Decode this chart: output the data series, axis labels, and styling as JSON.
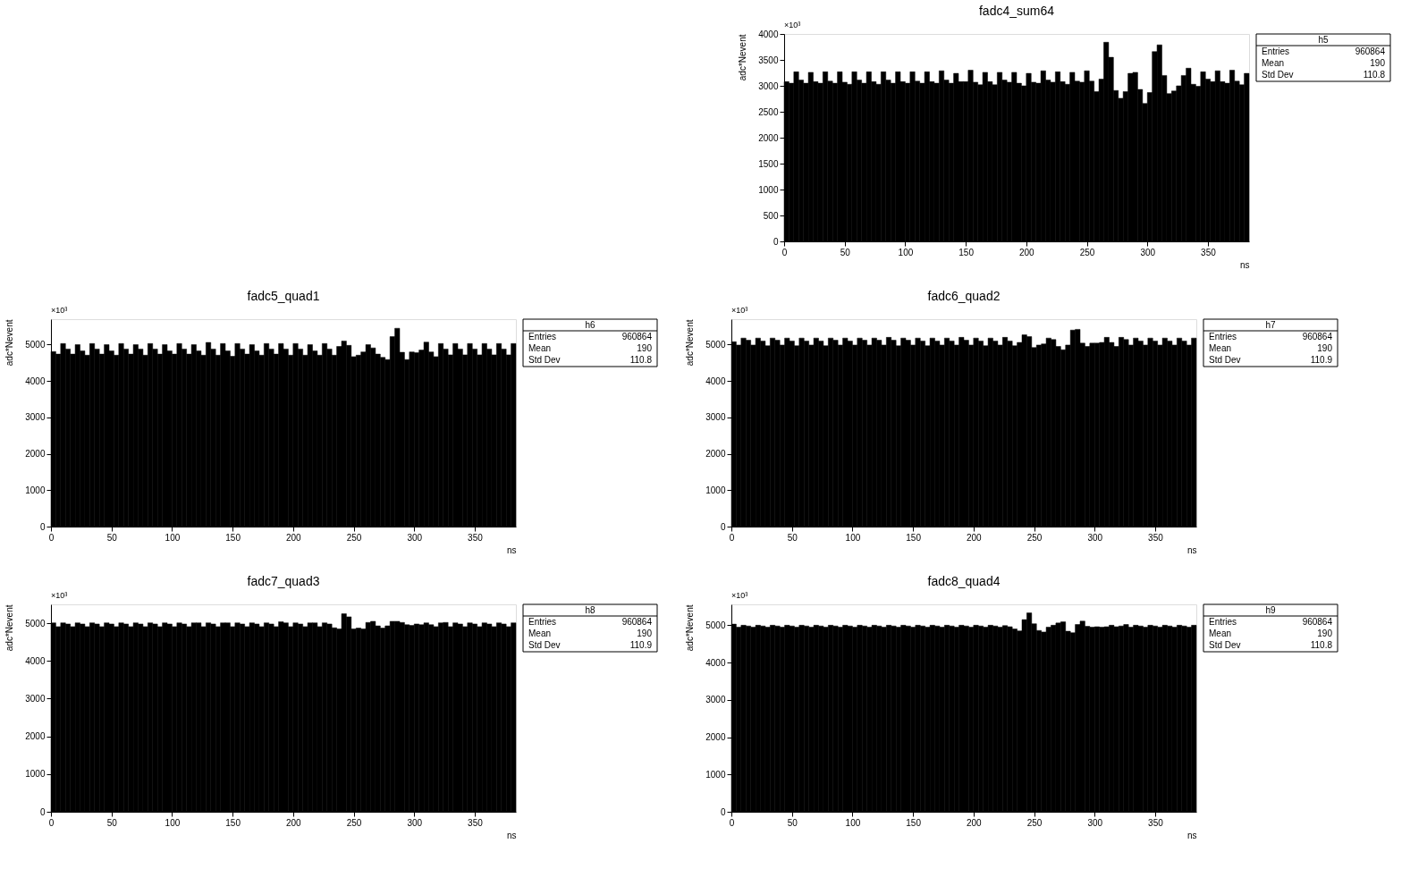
{
  "chart_data": [
    {
      "type": "histogram",
      "title": "fadc4_sum64",
      "xlabel": "ns",
      "ylabel": "adc*Nevent",
      "color": "#000000",
      "xlim": [
        0,
        384
      ],
      "xticks": [
        0,
        50,
        100,
        150,
        200,
        250,
        300,
        350
      ],
      "ylim": [
        0,
        4000
      ],
      "yticks": [
        0,
        500,
        1000,
        1500,
        2000,
        2500,
        3000,
        3500,
        4000
      ],
      "annotations": [
        "×10³",
        "h5",
        "Entries",
        "960864",
        "Mean",
        "190",
        "Std Dev",
        "110.8"
      ],
      "bins": [
        0,
        4,
        8,
        12,
        16,
        20,
        24,
        28,
        32,
        36,
        40,
        44,
        48,
        52,
        56,
        60,
        64,
        68,
        72,
        76,
        80,
        84,
        88,
        92,
        96,
        100,
        104,
        108,
        112,
        116,
        120,
        124,
        128,
        132,
        136,
        140,
        144,
        148,
        152,
        156,
        160,
        164,
        168,
        172,
        176,
        180,
        184,
        188,
        192,
        196,
        200,
        204,
        208,
        212,
        216,
        220,
        224,
        228,
        232,
        236,
        240,
        244,
        248,
        252,
        256,
        260,
        264,
        268,
        272,
        276,
        280,
        284,
        288,
        292,
        296,
        300,
        304,
        308,
        312,
        316,
        320,
        324,
        328,
        332,
        336,
        340,
        344,
        348,
        352,
        356,
        360,
        364,
        368,
        372,
        376,
        380,
        384
      ],
      "values": [
        3080,
        3050,
        3270,
        3110,
        3050,
        3260,
        3080,
        3050,
        3270,
        3090,
        3050,
        3270,
        3070,
        3030,
        3270,
        3110,
        3050,
        3270,
        3080,
        3030,
        3270,
        3110,
        3050,
        3270,
        3080,
        3050,
        3270,
        3090,
        3050,
        3270,
        3080,
        3050,
        3290,
        3110,
        3050,
        3240,
        3080,
        3080,
        3300,
        3070,
        3020,
        3260,
        3080,
        3020,
        3260,
        3110,
        3070,
        3260,
        3050,
        3000,
        3240,
        3070,
        3050,
        3290,
        3110,
        3070,
        3270,
        3080,
        3030,
        3260,
        3090,
        3070,
        3290,
        3090,
        2890,
        3130,
        3840,
        3550,
        2910,
        2760,
        2890,
        3240,
        3260,
        2930,
        2660,
        2870,
        3660,
        3790,
        3200,
        2850,
        2900,
        3000,
        3200,
        3340,
        3030,
        2990,
        3270,
        3130,
        3080,
        3290,
        3080,
        3050,
        3300,
        3090,
        3020,
        3240
      ]
    },
    {
      "type": "histogram",
      "title": "fadc5_quad1",
      "xlabel": "ns",
      "ylabel": "adc*Nevent",
      "color": "#000000",
      "xlim": [
        0,
        384
      ],
      "xticks": [
        0,
        50,
        100,
        150,
        200,
        250,
        300,
        350
      ],
      "ylim": [
        0,
        5700
      ],
      "yticks": [
        0,
        1000,
        2000,
        3000,
        4000,
        5000
      ],
      "annotations": [
        "×10³",
        "h6",
        "Entries",
        "960864",
        "Mean",
        "190",
        "Std Dev",
        "110.8"
      ],
      "bins": [
        0,
        4,
        8,
        12,
        16,
        20,
        24,
        28,
        32,
        36,
        40,
        44,
        48,
        52,
        56,
        60,
        64,
        68,
        72,
        76,
        80,
        84,
        88,
        92,
        96,
        100,
        104,
        108,
        112,
        116,
        120,
        124,
        128,
        132,
        136,
        140,
        144,
        148,
        152,
        156,
        160,
        164,
        168,
        172,
        176,
        180,
        184,
        188,
        192,
        196,
        200,
        204,
        208,
        212,
        216,
        220,
        224,
        228,
        232,
        236,
        240,
        244,
        248,
        252,
        256,
        260,
        264,
        268,
        272,
        276,
        280,
        284,
        288,
        292,
        296,
        300,
        304,
        308,
        312,
        316,
        320,
        324,
        328,
        332,
        336,
        340,
        344,
        348,
        352,
        356,
        360,
        364,
        368,
        372,
        376,
        380,
        384
      ],
      "values": [
        4810,
        4740,
        5030,
        4880,
        4740,
        5000,
        4830,
        4710,
        5030,
        4880,
        4740,
        5000,
        4830,
        4710,
        5030,
        4880,
        4740,
        5000,
        4880,
        4710,
        5030,
        4880,
        4740,
        5000,
        4830,
        4740,
        5030,
        4880,
        4740,
        5000,
        4830,
        4710,
        5060,
        4880,
        4710,
        5030,
        4830,
        4680,
        5030,
        4880,
        4740,
        5000,
        4830,
        4710,
        5030,
        4880,
        4740,
        5030,
        4880,
        4710,
        5030,
        4880,
        4710,
        5000,
        4830,
        4710,
        5030,
        4880,
        4710,
        4950,
        5100,
        4980,
        4670,
        4710,
        4800,
        5000,
        4910,
        4740,
        4650,
        4590,
        5220,
        5450,
        4790,
        4590,
        4800,
        4780,
        4850,
        5070,
        4800,
        4670,
        5030,
        4880,
        4720,
        5030,
        4880,
        4720,
        5030,
        4880,
        4720,
        5030,
        4880,
        4720,
        5030,
        4880,
        4720,
        5030
      ]
    },
    {
      "type": "histogram",
      "title": "fadc6_quad2",
      "xlabel": "ns",
      "ylabel": "adc*Nevent",
      "color": "#000000",
      "xlim": [
        0,
        384
      ],
      "xticks": [
        0,
        50,
        100,
        150,
        200,
        250,
        300,
        350
      ],
      "ylim": [
        0,
        5700
      ],
      "yticks": [
        0,
        1000,
        2000,
        3000,
        4000,
        5000
      ],
      "annotations": [
        "×10³",
        "h7",
        "Entries",
        "960864",
        "Mean",
        "190",
        "Std Dev",
        "110.9"
      ],
      "bins": [
        0,
        4,
        8,
        12,
        16,
        20,
        24,
        28,
        32,
        36,
        40,
        44,
        48,
        52,
        56,
        60,
        64,
        68,
        72,
        76,
        80,
        84,
        88,
        92,
        96,
        100,
        104,
        108,
        112,
        116,
        120,
        124,
        128,
        132,
        136,
        140,
        144,
        148,
        152,
        156,
        160,
        164,
        168,
        172,
        176,
        180,
        184,
        188,
        192,
        196,
        200,
        204,
        208,
        212,
        216,
        220,
        224,
        228,
        232,
        236,
        240,
        244,
        248,
        252,
        256,
        260,
        264,
        268,
        272,
        276,
        280,
        284,
        288,
        292,
        296,
        300,
        304,
        308,
        312,
        316,
        320,
        324,
        328,
        332,
        336,
        340,
        344,
        348,
        352,
        356,
        360,
        364,
        368,
        372,
        376,
        380,
        384
      ],
      "values": [
        5080,
        4990,
        5180,
        5120,
        4990,
        5180,
        5100,
        4970,
        5180,
        5120,
        4990,
        5180,
        5100,
        4970,
        5180,
        5100,
        4990,
        5180,
        5100,
        4970,
        5180,
        5120,
        4990,
        5180,
        5100,
        4990,
        5180,
        5120,
        4990,
        5180,
        5120,
        4990,
        5200,
        5120,
        4970,
        5180,
        5120,
        4990,
        5180,
        5100,
        4970,
        5180,
        5100,
        4990,
        5180,
        5100,
        4990,
        5200,
        5120,
        4990,
        5180,
        5100,
        4970,
        5180,
        5100,
        4990,
        5200,
        5100,
        4970,
        5060,
        5270,
        5220,
        4920,
        4990,
        5020,
        5180,
        5140,
        4950,
        4860,
        4990,
        5400,
        5420,
        5040,
        4950,
        5040,
        5040,
        5060,
        5200,
        5060,
        4950,
        5200,
        5140,
        4990,
        5180,
        5100,
        4990,
        5180,
        5100,
        4990,
        5180,
        5100,
        4990,
        5180,
        5100,
        4990,
        5180
      ]
    },
    {
      "type": "histogram",
      "title": "fadc7_quad3",
      "xlabel": "ns",
      "ylabel": "adc*Nevent",
      "color": "#000000",
      "xlim": [
        0,
        384
      ],
      "xticks": [
        0,
        50,
        100,
        150,
        200,
        250,
        300,
        350
      ],
      "ylim": [
        0,
        5500
      ],
      "yticks": [
        0,
        1000,
        2000,
        3000,
        4000,
        5000
      ],
      "annotations": [
        "×10³",
        "h8",
        "Entries",
        "960864",
        "Mean",
        "190",
        "Std Dev",
        "110.9"
      ],
      "bins": [
        0,
        4,
        8,
        12,
        16,
        20,
        24,
        28,
        32,
        36,
        40,
        44,
        48,
        52,
        56,
        60,
        64,
        68,
        72,
        76,
        80,
        84,
        88,
        92,
        96,
        100,
        104,
        108,
        112,
        116,
        120,
        124,
        128,
        132,
        136,
        140,
        144,
        148,
        152,
        156,
        160,
        164,
        168,
        172,
        176,
        180,
        184,
        188,
        192,
        196,
        200,
        204,
        208,
        212,
        216,
        220,
        224,
        228,
        232,
        236,
        240,
        244,
        248,
        252,
        256,
        260,
        264,
        268,
        272,
        276,
        280,
        284,
        288,
        292,
        296,
        300,
        304,
        308,
        312,
        316,
        320,
        324,
        328,
        332,
        336,
        340,
        344,
        348,
        352,
        356,
        360,
        364,
        368,
        372,
        376,
        380,
        384
      ],
      "values": [
        5010,
        4910,
        5010,
        4980,
        4910,
        5010,
        4980,
        4910,
        5010,
        4980,
        4910,
        5010,
        4980,
        4910,
        5010,
        4980,
        4910,
        5010,
        4980,
        4910,
        5010,
        4980,
        4910,
        5010,
        4980,
        4910,
        5010,
        4980,
        4910,
        5010,
        5010,
        4910,
        5010,
        4980,
        4910,
        5010,
        5010,
        4910,
        5010,
        4980,
        4910,
        5010,
        4980,
        4910,
        5010,
        4980,
        4910,
        5040,
        5010,
        4910,
        5010,
        4980,
        4910,
        5010,
        5010,
        4910,
        5010,
        4980,
        4880,
        4850,
        5250,
        5170,
        4850,
        4870,
        4850,
        5020,
        5050,
        4930,
        4870,
        4930,
        5050,
        5050,
        5020,
        4960,
        4940,
        4980,
        4960,
        5010,
        4960,
        4910,
        5010,
        5020,
        4910,
        5010,
        4980,
        4910,
        5010,
        4980,
        4910,
        5010,
        4980,
        4910,
        5010,
        4980,
        4910,
        5010
      ]
    },
    {
      "type": "histogram",
      "title": "fadc8_quad4",
      "xlabel": "ns",
      "ylabel": "adc*Nevent",
      "color": "#000000",
      "xlim": [
        0,
        384
      ],
      "xticks": [
        0,
        50,
        100,
        150,
        200,
        250,
        300,
        350
      ],
      "ylim": [
        0,
        5560
      ],
      "yticks": [
        0,
        1000,
        2000,
        3000,
        4000,
        5000
      ],
      "annotations": [
        "×10³",
        "h9",
        "Entries",
        "960864",
        "Mean",
        "190",
        "Std Dev",
        "110.8"
      ],
      "bins": [
        0,
        4,
        8,
        12,
        16,
        20,
        24,
        28,
        32,
        36,
        40,
        44,
        48,
        52,
        56,
        60,
        64,
        68,
        72,
        76,
        80,
        84,
        88,
        92,
        96,
        100,
        104,
        108,
        112,
        116,
        120,
        124,
        128,
        132,
        136,
        140,
        144,
        148,
        152,
        156,
        160,
        164,
        168,
        172,
        176,
        180,
        184,
        188,
        192,
        196,
        200,
        204,
        208,
        212,
        216,
        220,
        224,
        228,
        232,
        236,
        240,
        244,
        248,
        252,
        256,
        260,
        264,
        268,
        272,
        276,
        280,
        284,
        288,
        292,
        296,
        300,
        304,
        308,
        312,
        316,
        320,
        324,
        328,
        332,
        336,
        340,
        344,
        348,
        352,
        356,
        360,
        364,
        368,
        372,
        376,
        380,
        384
      ],
      "values": [
        5030,
        4950,
        5000,
        4980,
        4950,
        5000,
        4980,
        4950,
        5000,
        4980,
        4950,
        5000,
        4980,
        4950,
        5000,
        4980,
        4950,
        5000,
        4980,
        4950,
        5000,
        4980,
        4950,
        5000,
        4980,
        4950,
        5000,
        4980,
        4950,
        5000,
        4980,
        4950,
        5000,
        4980,
        4950,
        5000,
        4980,
        4950,
        5000,
        4980,
        4950,
        5000,
        4980,
        4950,
        5000,
        4980,
        4950,
        5000,
        4980,
        4950,
        5000,
        4980,
        4950,
        5000,
        4980,
        4950,
        4990,
        4960,
        4900,
        4850,
        5150,
        5330,
        5040,
        4860,
        4820,
        4950,
        5000,
        5060,
        5090,
        4840,
        4800,
        5020,
        5110,
        4970,
        4950,
        4960,
        4950,
        4960,
        5000,
        4960,
        4980,
        5020,
        4950,
        5000,
        4980,
        4950,
        5000,
        4980,
        4950,
        5000,
        4980,
        4950,
        5000,
        4980,
        4950,
        5000
      ]
    }
  ]
}
